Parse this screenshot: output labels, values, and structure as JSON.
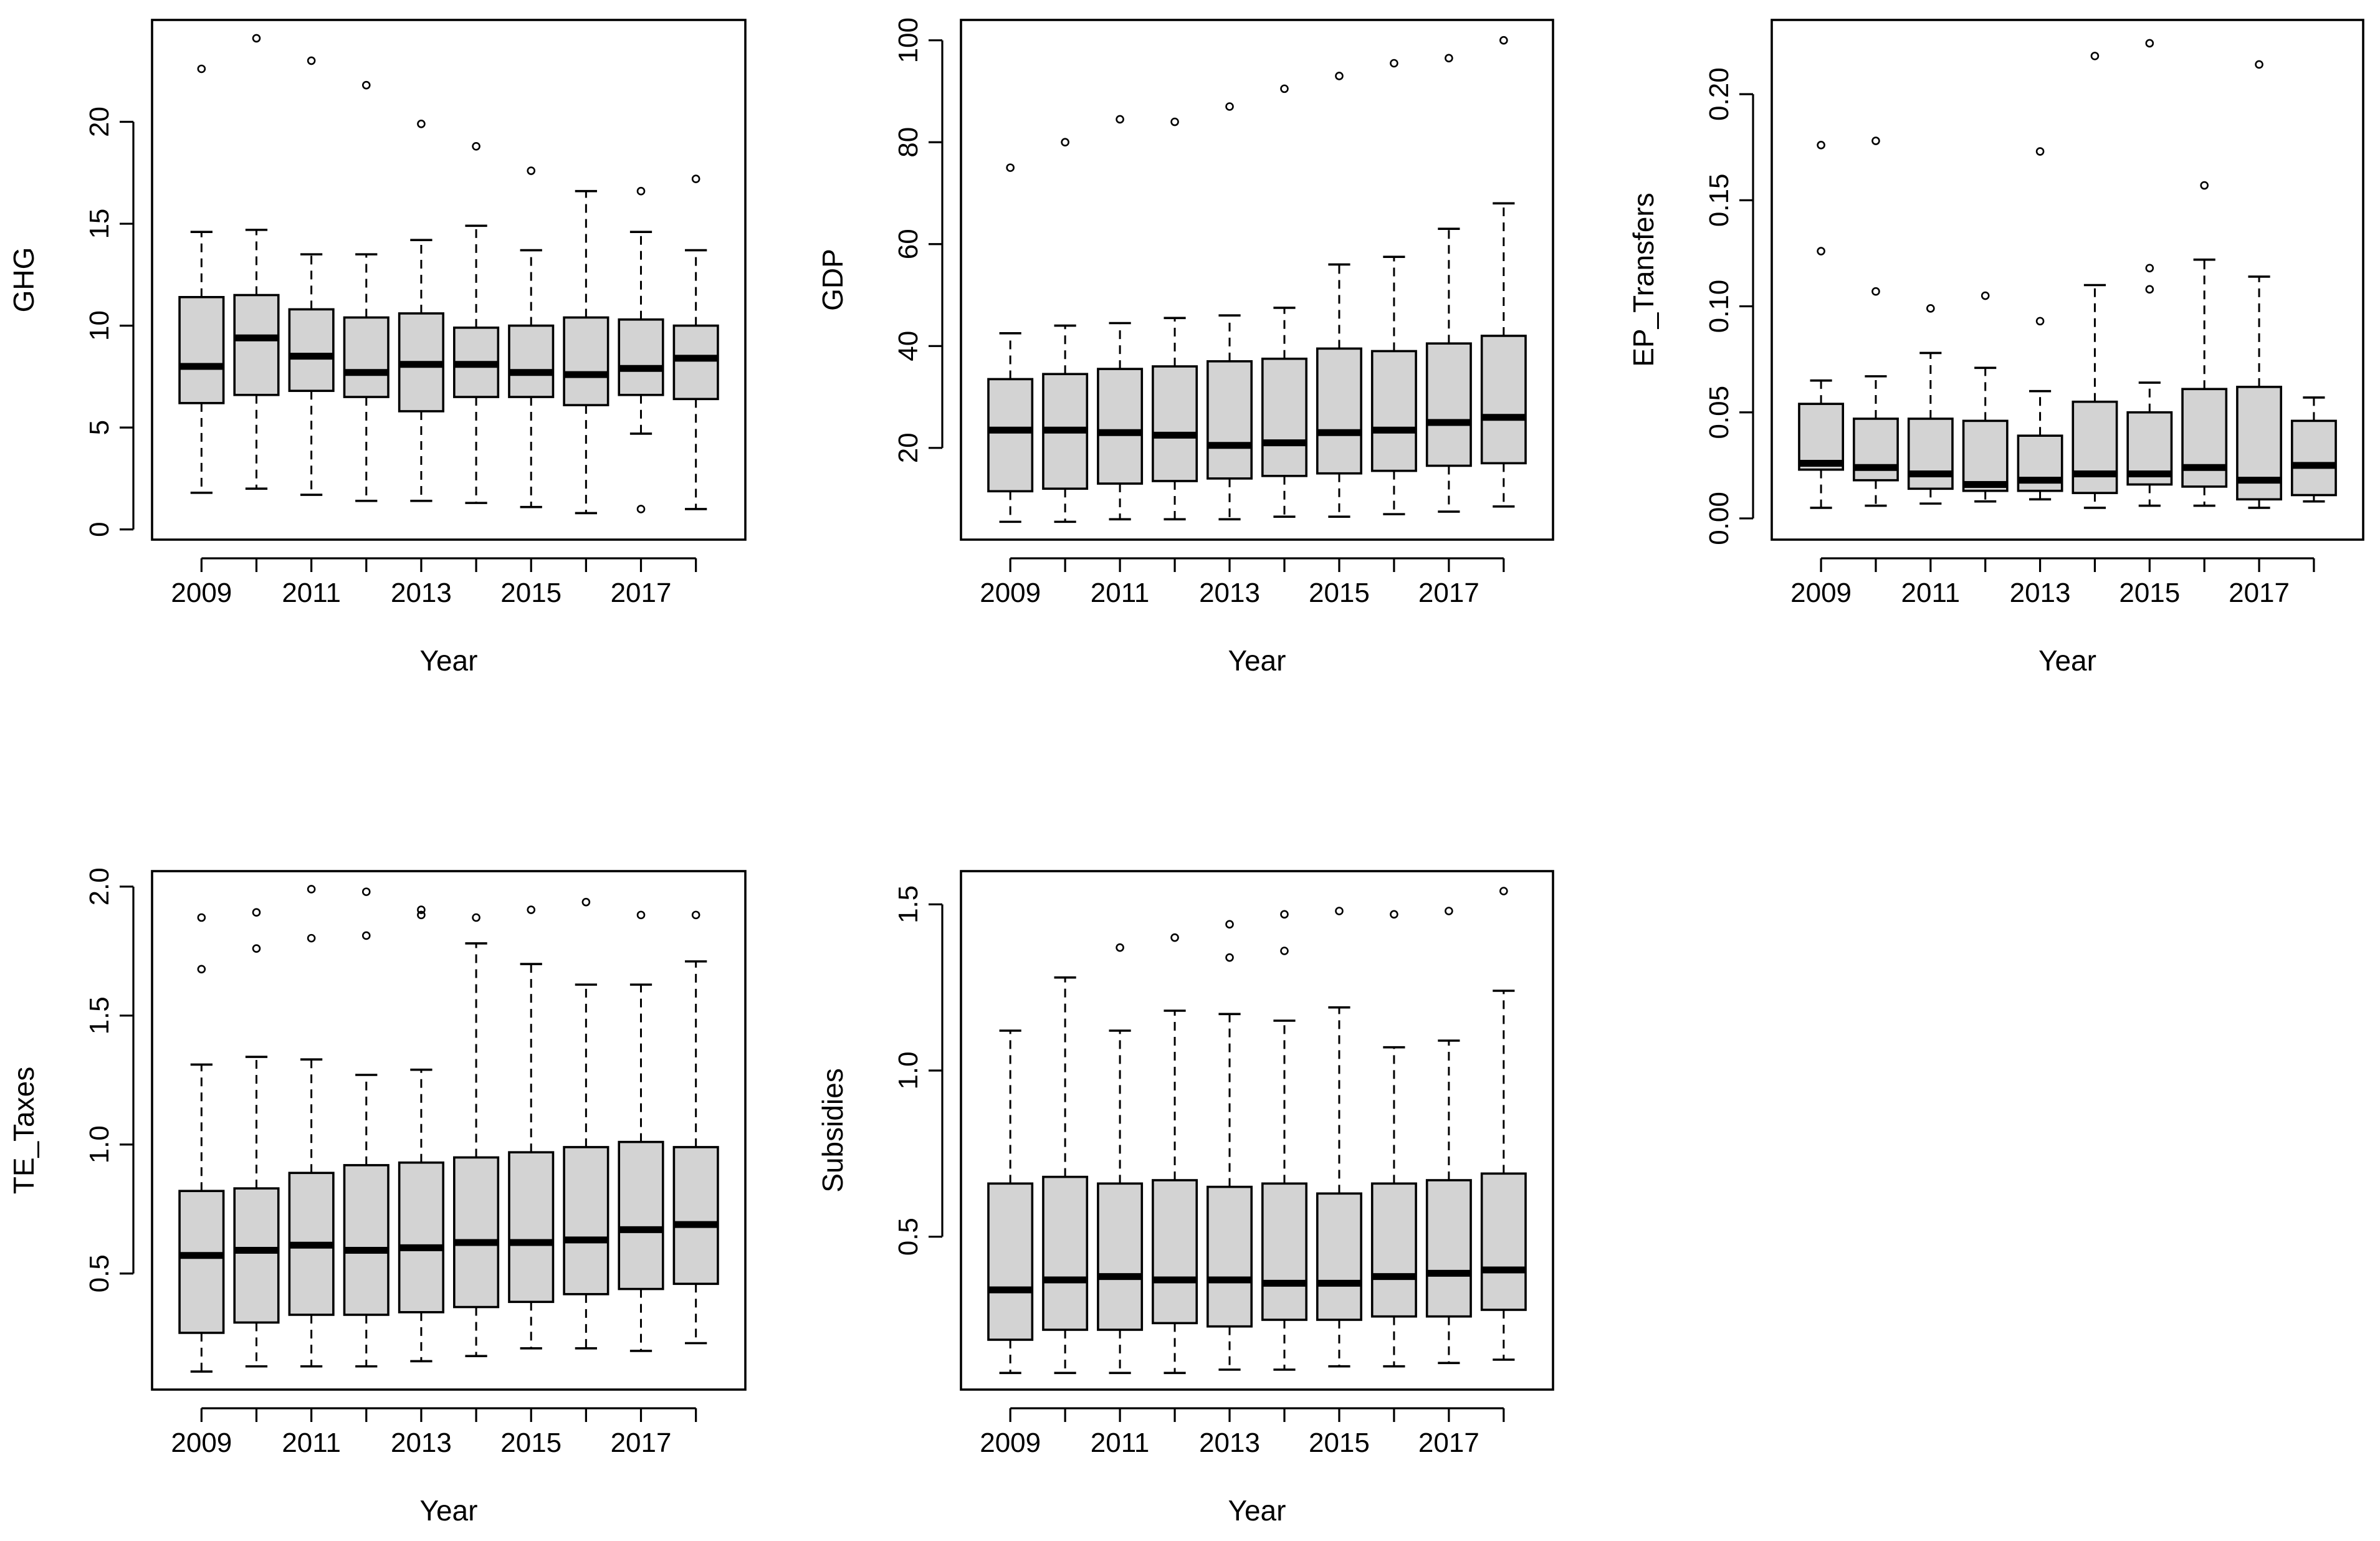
{
  "chart_data": [
    {
      "type": "boxplot",
      "title": "",
      "xlabel": "Year",
      "ylabel": "GHG",
      "categories": [
        "2009",
        "2010",
        "2011",
        "2012",
        "2013",
        "2014",
        "2015",
        "2016",
        "2017",
        "2018"
      ],
      "x_tick_labels": [
        "2009",
        "2011",
        "2013",
        "2015",
        "2017"
      ],
      "ylim": [
        -0.5,
        25.0
      ],
      "y_ticks": [
        0,
        5,
        10,
        15,
        20
      ],
      "y_tick_labels": [
        "0",
        "5",
        "10",
        "15",
        "20"
      ],
      "boxes": [
        {
          "min": 1.8,
          "q1": 6.2,
          "median": 8.0,
          "q3": 11.4,
          "max": 14.6,
          "outliers": [
            22.6
          ]
        },
        {
          "min": 2.0,
          "q1": 6.6,
          "median": 9.4,
          "q3": 11.5,
          "max": 14.7,
          "outliers": [
            24.1
          ]
        },
        {
          "min": 1.7,
          "q1": 6.8,
          "median": 8.5,
          "q3": 10.8,
          "max": 13.5,
          "outliers": [
            23.0
          ]
        },
        {
          "min": 1.4,
          "q1": 6.5,
          "median": 7.7,
          "q3": 10.4,
          "max": 13.5,
          "outliers": [
            21.8
          ]
        },
        {
          "min": 1.4,
          "q1": 5.8,
          "median": 8.1,
          "q3": 10.6,
          "max": 14.2,
          "outliers": [
            19.9
          ]
        },
        {
          "min": 1.3,
          "q1": 6.5,
          "median": 8.1,
          "q3": 9.9,
          "max": 14.9,
          "outliers": [
            18.8
          ]
        },
        {
          "min": 1.1,
          "q1": 6.5,
          "median": 7.7,
          "q3": 10.0,
          "max": 13.7,
          "outliers": [
            17.6
          ]
        },
        {
          "min": 0.8,
          "q1": 6.1,
          "median": 7.6,
          "q3": 10.4,
          "max": 16.6,
          "outliers": []
        },
        {
          "min": 4.7,
          "q1": 6.6,
          "median": 7.9,
          "q3": 10.3,
          "max": 14.6,
          "outliers": [
            16.6,
            1.0
          ]
        },
        {
          "min": 1.0,
          "q1": 6.4,
          "median": 8.4,
          "q3": 10.0,
          "max": 13.7,
          "outliers": [
            17.2
          ]
        }
      ]
    },
    {
      "type": "boxplot",
      "title": "",
      "xlabel": "Year",
      "ylabel": "GDP",
      "categories": [
        "2009",
        "2010",
        "2011",
        "2012",
        "2013",
        "2014",
        "2015",
        "2016",
        "2017",
        "2018"
      ],
      "x_tick_labels": [
        "2009",
        "2011",
        "2013",
        "2015",
        "2017"
      ],
      "ylim": [
        2,
        104
      ],
      "y_ticks": [
        20,
        40,
        60,
        80,
        100
      ],
      "y_tick_labels": [
        "20",
        "40",
        "60",
        "80",
        "100"
      ],
      "boxes": [
        {
          "min": 5.5,
          "q1": 11.5,
          "median": 23.5,
          "q3": 33.5,
          "max": 42.5,
          "outliers": [
            75.0
          ]
        },
        {
          "min": 5.5,
          "q1": 12.0,
          "median": 23.5,
          "q3": 34.5,
          "max": 44.0,
          "outliers": [
            80.0
          ]
        },
        {
          "min": 6.0,
          "q1": 13.0,
          "median": 23.0,
          "q3": 35.5,
          "max": 44.5,
          "outliers": [
            84.5
          ]
        },
        {
          "min": 6.0,
          "q1": 13.5,
          "median": 22.5,
          "q3": 36.0,
          "max": 45.5,
          "outliers": [
            84.0
          ]
        },
        {
          "min": 6.0,
          "q1": 14.0,
          "median": 20.5,
          "q3": 37.0,
          "max": 46.0,
          "outliers": [
            87.0
          ]
        },
        {
          "min": 6.5,
          "q1": 14.5,
          "median": 21.0,
          "q3": 37.5,
          "max": 47.5,
          "outliers": [
            90.5
          ]
        },
        {
          "min": 6.5,
          "q1": 15.0,
          "median": 23.0,
          "q3": 39.5,
          "max": 56.0,
          "outliers": [
            93.0
          ]
        },
        {
          "min": 7.0,
          "q1": 15.5,
          "median": 23.5,
          "q3": 39.0,
          "max": 57.5,
          "outliers": [
            95.5
          ]
        },
        {
          "min": 7.5,
          "q1": 16.5,
          "median": 25.0,
          "q3": 40.5,
          "max": 63.0,
          "outliers": [
            96.5
          ]
        },
        {
          "min": 8.5,
          "q1": 17.0,
          "median": 26.0,
          "q3": 42.0,
          "max": 68.0,
          "outliers": [
            100.0
          ]
        }
      ]
    },
    {
      "type": "boxplot",
      "title": "",
      "xlabel": "Year",
      "ylabel": "EP_Transfers",
      "categories": [
        "2009",
        "2010",
        "2011",
        "2012",
        "2013",
        "2014",
        "2015",
        "2016",
        "2017",
        "2018"
      ],
      "x_tick_labels": [
        "2009",
        "2011",
        "2013",
        "2015",
        "2017"
      ],
      "ylim": [
        -0.01,
        0.235
      ],
      "y_ticks": [
        0.0,
        0.05,
        0.1,
        0.15,
        0.2
      ],
      "y_tick_labels": [
        "0.00",
        "0.05",
        "0.10",
        "0.15",
        "0.20"
      ],
      "boxes": [
        {
          "min": 0.005,
          "q1": 0.023,
          "median": 0.026,
          "q3": 0.054,
          "max": 0.065,
          "outliers": [
            0.176,
            0.126
          ]
        },
        {
          "min": 0.006,
          "q1": 0.018,
          "median": 0.024,
          "q3": 0.047,
          "max": 0.067,
          "outliers": [
            0.178,
            0.107
          ]
        },
        {
          "min": 0.007,
          "q1": 0.014,
          "median": 0.021,
          "q3": 0.047,
          "max": 0.078,
          "outliers": [
            0.099
          ]
        },
        {
          "min": 0.008,
          "q1": 0.013,
          "median": 0.016,
          "q3": 0.046,
          "max": 0.071,
          "outliers": [
            0.105
          ]
        },
        {
          "min": 0.009,
          "q1": 0.013,
          "median": 0.018,
          "q3": 0.039,
          "max": 0.06,
          "outliers": [
            0.173,
            0.093
          ]
        },
        {
          "min": 0.005,
          "q1": 0.012,
          "median": 0.021,
          "q3": 0.055,
          "max": 0.11,
          "outliers": [
            0.218
          ]
        },
        {
          "min": 0.006,
          "q1": 0.016,
          "median": 0.021,
          "q3": 0.05,
          "max": 0.064,
          "outliers": [
            0.224,
            0.118,
            0.108
          ]
        },
        {
          "min": 0.006,
          "q1": 0.015,
          "median": 0.024,
          "q3": 0.061,
          "max": 0.122,
          "outliers": [
            0.157
          ]
        },
        {
          "min": 0.005,
          "q1": 0.009,
          "median": 0.018,
          "q3": 0.062,
          "max": 0.114,
          "outliers": [
            0.214
          ]
        },
        {
          "min": 0.008,
          "q1": 0.011,
          "median": 0.025,
          "q3": 0.046,
          "max": 0.057,
          "outliers": []
        }
      ]
    },
    {
      "type": "boxplot",
      "title": "",
      "xlabel": "Year",
      "ylabel": "TE_Taxes",
      "categories": [
        "2009",
        "2010",
        "2011",
        "2012",
        "2013",
        "2014",
        "2015",
        "2016",
        "2017",
        "2018"
      ],
      "x_tick_labels": [
        "2009",
        "2011",
        "2013",
        "2015",
        "2017"
      ],
      "ylim": [
        0.05,
        2.06
      ],
      "y_ticks": [
        0.5,
        1.0,
        1.5,
        2.0
      ],
      "y_tick_labels": [
        "0.5",
        "1.0",
        "1.5",
        "2.0"
      ],
      "boxes": [
        {
          "min": 0.12,
          "q1": 0.27,
          "median": 0.57,
          "q3": 0.82,
          "max": 1.31,
          "outliers": [
            1.88,
            1.68
          ]
        },
        {
          "min": 0.14,
          "q1": 0.31,
          "median": 0.59,
          "q3": 0.83,
          "max": 1.34,
          "outliers": [
            1.9,
            1.76
          ]
        },
        {
          "min": 0.14,
          "q1": 0.34,
          "median": 0.61,
          "q3": 0.89,
          "max": 1.33,
          "outliers": [
            1.99,
            1.8
          ]
        },
        {
          "min": 0.14,
          "q1": 0.34,
          "median": 0.59,
          "q3": 0.92,
          "max": 1.27,
          "outliers": [
            1.98,
            1.81
          ]
        },
        {
          "min": 0.16,
          "q1": 0.35,
          "median": 0.6,
          "q3": 0.93,
          "max": 1.29,
          "outliers": [
            1.91,
            1.89
          ]
        },
        {
          "min": 0.18,
          "q1": 0.37,
          "median": 0.62,
          "q3": 0.95,
          "max": 1.78,
          "outliers": [
            1.88
          ]
        },
        {
          "min": 0.21,
          "q1": 0.39,
          "median": 0.62,
          "q3": 0.97,
          "max": 1.7,
          "outliers": [
            1.91
          ]
        },
        {
          "min": 0.21,
          "q1": 0.42,
          "median": 0.63,
          "q3": 0.99,
          "max": 1.62,
          "outliers": [
            1.94
          ]
        },
        {
          "min": 0.2,
          "q1": 0.44,
          "median": 0.67,
          "q3": 1.01,
          "max": 1.62,
          "outliers": [
            1.89
          ]
        },
        {
          "min": 0.23,
          "q1": 0.46,
          "median": 0.69,
          "q3": 0.99,
          "max": 1.71,
          "outliers": [
            1.89
          ]
        }
      ]
    },
    {
      "type": "boxplot",
      "title": "",
      "xlabel": "Year",
      "ylabel": "Subsidies",
      "categories": [
        "2009",
        "2010",
        "2011",
        "2012",
        "2013",
        "2014",
        "2015",
        "2016",
        "2017",
        "2018"
      ],
      "x_tick_labels": [
        "2009",
        "2011",
        "2013",
        "2015",
        "2017"
      ],
      "ylim": [
        0.04,
        1.6
      ],
      "y_ticks": [
        0.5,
        1.0,
        1.5
      ],
      "y_tick_labels": [
        "0.5",
        "1.0",
        "1.5"
      ],
      "boxes": [
        {
          "min": 0.09,
          "q1": 0.19,
          "median": 0.34,
          "q3": 0.66,
          "max": 1.12,
          "outliers": []
        },
        {
          "min": 0.09,
          "q1": 0.22,
          "median": 0.37,
          "q3": 0.68,
          "max": 1.28,
          "outliers": []
        },
        {
          "min": 0.09,
          "q1": 0.22,
          "median": 0.38,
          "q3": 0.66,
          "max": 1.12,
          "outliers": [
            1.37
          ]
        },
        {
          "min": 0.09,
          "q1": 0.24,
          "median": 0.37,
          "q3": 0.67,
          "max": 1.18,
          "outliers": [
            1.4
          ]
        },
        {
          "min": 0.1,
          "q1": 0.23,
          "median": 0.37,
          "q3": 0.65,
          "max": 1.17,
          "outliers": [
            1.44,
            1.34
          ]
        },
        {
          "min": 0.1,
          "q1": 0.25,
          "median": 0.36,
          "q3": 0.66,
          "max": 1.15,
          "outliers": [
            1.47,
            1.36
          ]
        },
        {
          "min": 0.11,
          "q1": 0.25,
          "median": 0.36,
          "q3": 0.63,
          "max": 1.19,
          "outliers": [
            1.48
          ]
        },
        {
          "min": 0.11,
          "q1": 0.26,
          "median": 0.38,
          "q3": 0.66,
          "max": 1.07,
          "outliers": [
            1.47
          ]
        },
        {
          "min": 0.12,
          "q1": 0.26,
          "median": 0.39,
          "q3": 0.67,
          "max": 1.09,
          "outliers": [
            1.48
          ]
        },
        {
          "min": 0.13,
          "q1": 0.28,
          "median": 0.4,
          "q3": 0.69,
          "max": 1.24,
          "outliers": [
            1.54
          ]
        }
      ]
    }
  ]
}
